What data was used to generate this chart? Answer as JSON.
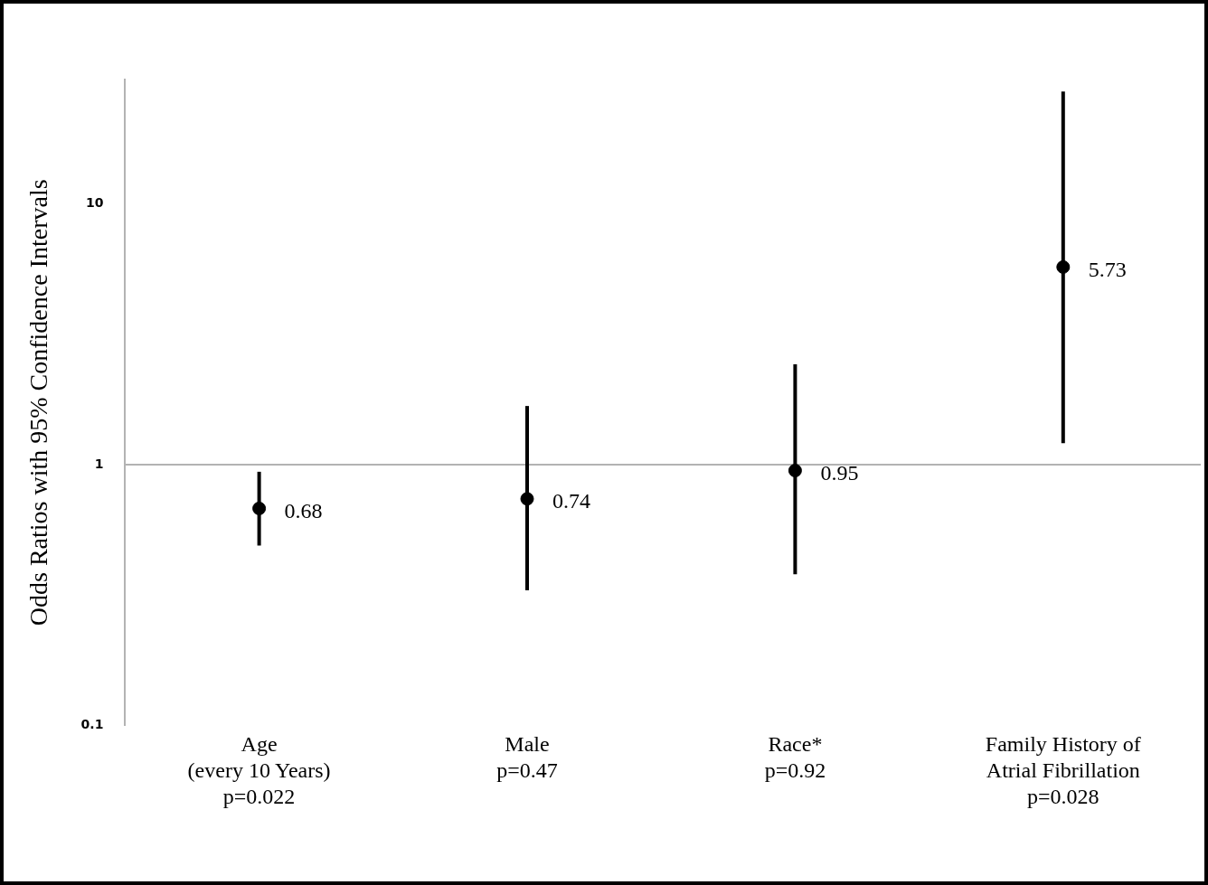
{
  "chart_data": {
    "type": "scatter",
    "ylabel": "Odds Ratios with 95% Confidence Intervals",
    "categories": [
      "Age\n(every 10 Years)\np=0.022",
      "Male\np=0.47",
      "Race*\np=0.92",
      "Family History of\nAtrial Fibrillation\np=0.028"
    ],
    "values": [
      0.68,
      0.74,
      0.95,
      5.73
    ],
    "errors": [
      [
        0.49,
        0.94
      ],
      [
        0.33,
        1.68
      ],
      [
        0.38,
        2.43
      ],
      [
        1.21,
        27
      ]
    ],
    "color": "#000000",
    "marker": "circle",
    "data_labels": true,
    "log": "y",
    "ylim": [
      0.1,
      30
    ],
    "yticks": [
      0.1,
      1,
      10
    ],
    "ref_lines": [
      {
        "axis": "y",
        "value": 1,
        "color": "#b3b3b3"
      }
    ]
  }
}
